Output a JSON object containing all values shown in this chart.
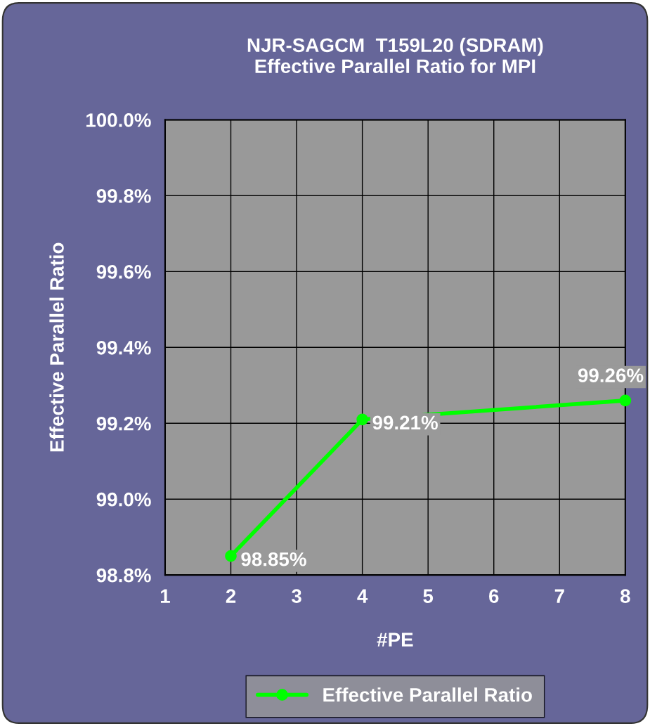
{
  "chart_data": {
    "type": "line",
    "title": "NJR-SAGCM  T159L20 (SDRAM)\nEffective Parallel Ratio for MPI",
    "xlabel": "#PE",
    "ylabel": "Effective Parallel Ratio",
    "x": [
      2,
      4,
      8
    ],
    "series": [
      {
        "name": "Effective Parallel Ratio",
        "color": "#00ff00",
        "values": [
          98.85,
          99.21,
          99.26
        ],
        "value_labels": [
          "98.85%",
          "99.21%",
          "99.26%"
        ]
      }
    ],
    "xlim": [
      1,
      8
    ],
    "xticks": [
      1,
      2,
      3,
      4,
      5,
      6,
      7,
      8
    ],
    "ylim": [
      98.8,
      100.0
    ],
    "yticks": [
      {
        "value": 98.8,
        "label": "98.8%"
      },
      {
        "value": 99.0,
        "label": "99.0%"
      },
      {
        "value": 99.2,
        "label": "99.2%"
      },
      {
        "value": 99.4,
        "label": "99.4%"
      },
      {
        "value": 99.6,
        "label": "99.6%"
      },
      {
        "value": 99.8,
        "label": "99.8%"
      },
      {
        "value": 100.0,
        "label": "100.0%"
      }
    ],
    "grid": true,
    "legend": "bottom",
    "marker": "circle",
    "line_style": "solid"
  }
}
